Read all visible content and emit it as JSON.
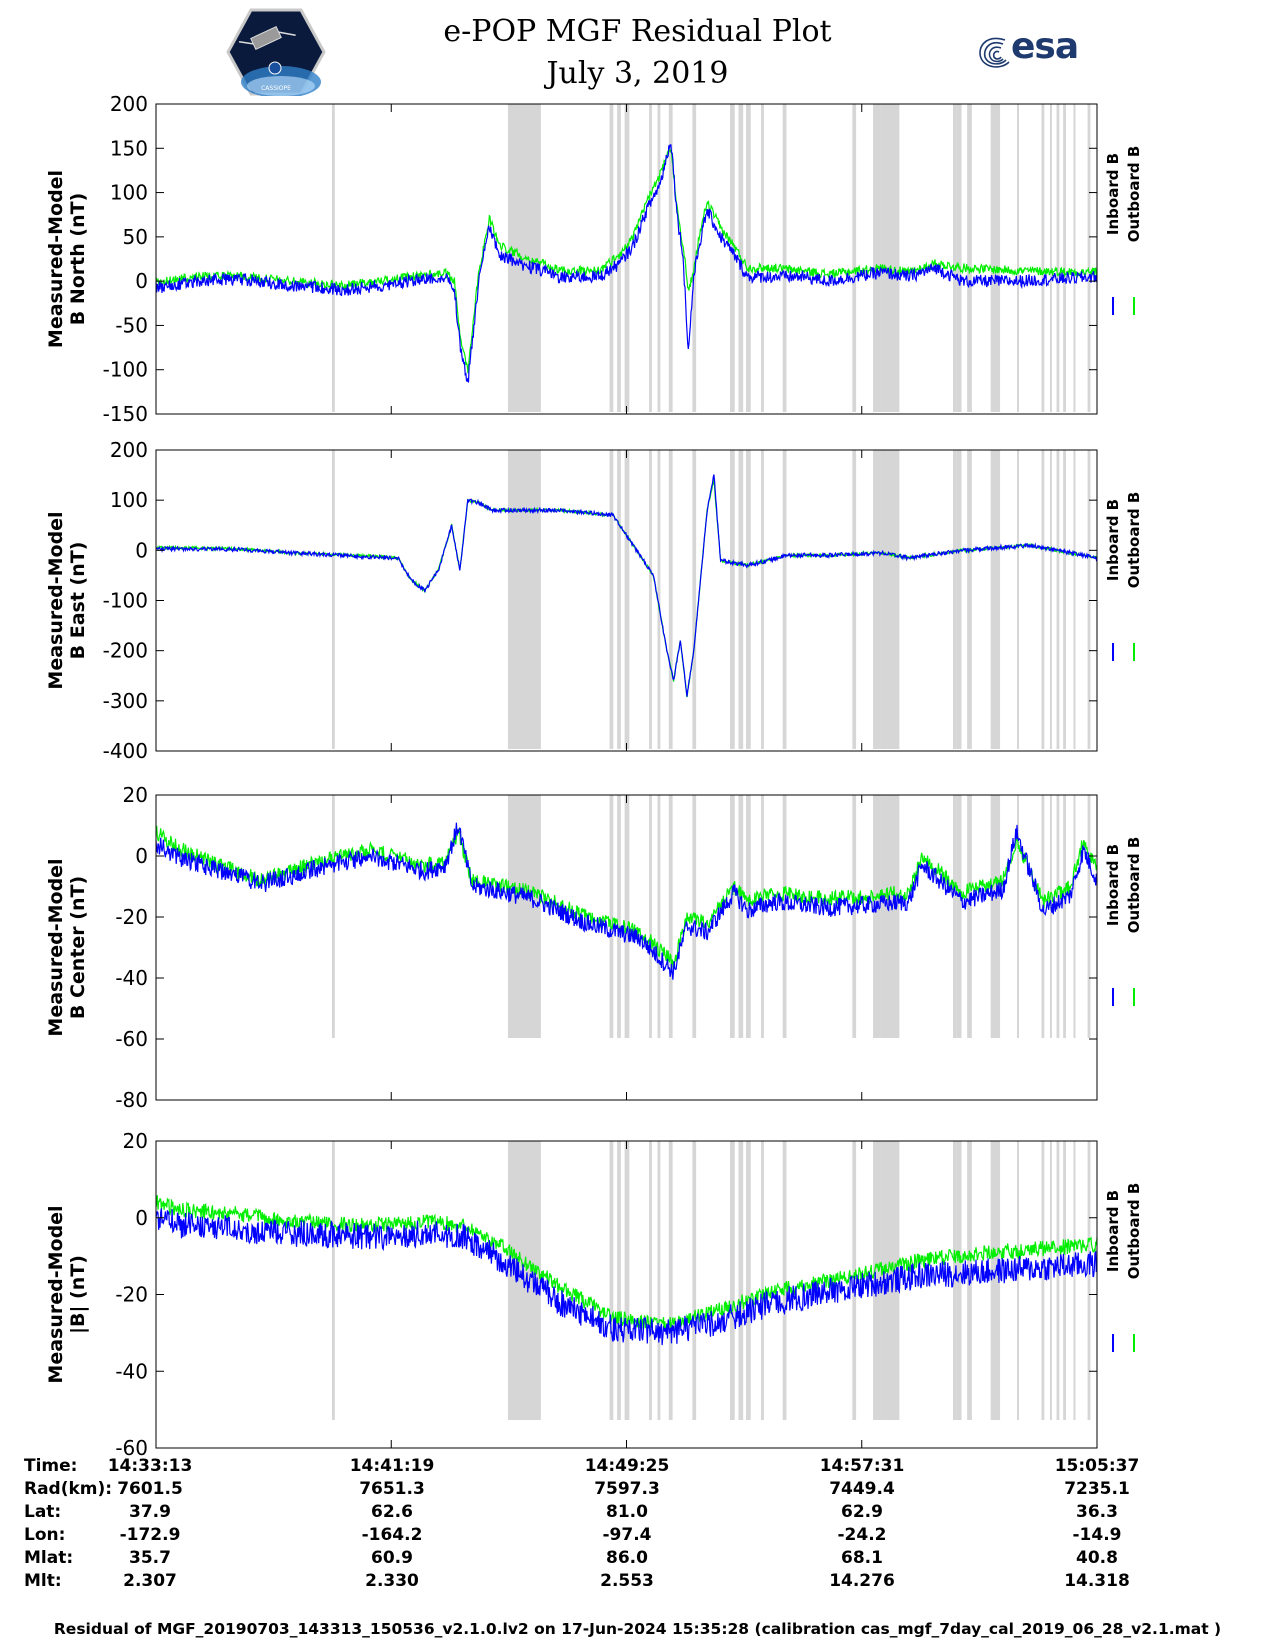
{
  "header": {
    "title_line1": "e-POP MGF Residual Plot",
    "title_line2": "July 3, 2019",
    "logo_left": "cassiope-mission-patch",
    "logo_left_text": "CASSIOPE",
    "logo_right": "esa-logo",
    "logo_right_text": "esa"
  },
  "colors": {
    "inboard": "#0000ff",
    "outboard": "#00ee00",
    "shade": "#d6d6d6",
    "axis": "#000000"
  },
  "chart_data": [
    {
      "type": "line",
      "ylabel_line1": "Measured-Model",
      "ylabel_line2": "B North (nT)",
      "ylim": [
        -150,
        200
      ],
      "yticks": [
        200,
        150,
        100,
        50,
        0,
        -50,
        -100,
        -150
      ],
      "legend": [
        "Inboard B",
        "Outboard B"
      ],
      "legend_position": "right",
      "series": [
        {
          "name": "Outboard B",
          "color": "#00ee00",
          "noise": 5,
          "x": [
            0,
            30,
            60,
            100,
            140,
            175,
            200,
            215,
            222,
            226,
            232,
            240,
            248,
            256,
            270,
            300,
            330,
            345,
            355,
            365,
            375,
            383,
            388,
            392,
            396,
            400,
            404,
            410,
            420,
            430,
            440,
            460,
            480,
            500,
            540,
            560,
            580,
            600,
            640,
            700
          ],
          "y": [
            -2,
            5,
            6,
            0,
            -5,
            2,
            7,
            9,
            0,
            -60,
            -100,
            10,
            70,
            40,
            30,
            12,
            12,
            30,
            50,
            90,
            120,
            150,
            80,
            40,
            -10,
            10,
            50,
            90,
            60,
            40,
            15,
            15,
            12,
            8,
            15,
            10,
            20,
            15,
            12,
            10
          ]
        },
        {
          "name": "Inboard B",
          "color": "#0000ff",
          "noise": 7,
          "x": [
            0,
            30,
            60,
            100,
            140,
            175,
            200,
            215,
            222,
            226,
            232,
            240,
            248,
            256,
            270,
            300,
            330,
            345,
            355,
            365,
            375,
            383,
            388,
            392,
            396,
            400,
            404,
            410,
            420,
            430,
            440,
            460,
            480,
            500,
            540,
            560,
            580,
            600,
            640,
            700
          ],
          "y": [
            -8,
            0,
            3,
            -5,
            -10,
            -3,
            2,
            5,
            -10,
            -70,
            -115,
            0,
            60,
            30,
            20,
            5,
            5,
            20,
            40,
            80,
            110,
            160,
            70,
            30,
            -80,
            5,
            40,
            80,
            50,
            30,
            5,
            5,
            5,
            0,
            10,
            5,
            15,
            0,
            0,
            5
          ]
        }
      ]
    },
    {
      "type": "line",
      "ylabel_line1": "Measured-Model",
      "ylabel_line2": "B East (nT)",
      "ylim": [
        -400,
        200
      ],
      "yticks": [
        200,
        100,
        0,
        -100,
        -200,
        -300,
        -400
      ],
      "legend": [
        "Inboard B",
        "Outboard B"
      ],
      "legend_position": "right",
      "series": [
        {
          "name": "Outboard B",
          "color": "#00ee00",
          "noise": 3,
          "x": [
            0,
            20,
            60,
            100,
            150,
            180,
            190,
            200,
            210,
            220,
            226,
            232,
            240,
            250,
            270,
            300,
            340,
            370,
            380,
            385,
            390,
            395,
            400,
            410,
            415,
            420,
            440,
            470,
            500,
            540,
            560,
            600,
            650,
            700
          ],
          "y": [
            5,
            5,
            3,
            -5,
            -10,
            -15,
            -60,
            -80,
            -40,
            50,
            -40,
            100,
            95,
            80,
            80,
            80,
            70,
            -50,
            -200,
            -260,
            -180,
            -290,
            -200,
            80,
            140,
            -20,
            -30,
            -10,
            -10,
            -5,
            -15,
            0,
            10,
            -15
          ]
        },
        {
          "name": "Inboard B",
          "color": "#0000ff",
          "noise": 4,
          "x": [
            0,
            20,
            60,
            100,
            150,
            180,
            190,
            200,
            210,
            220,
            226,
            232,
            240,
            250,
            270,
            300,
            340,
            370,
            380,
            385,
            390,
            395,
            400,
            410,
            415,
            420,
            440,
            470,
            500,
            540,
            560,
            600,
            650,
            700
          ],
          "y": [
            3,
            3,
            2,
            -5,
            -12,
            -15,
            -60,
            -80,
            -40,
            50,
            -40,
            100,
            95,
            80,
            80,
            80,
            70,
            -50,
            -200,
            -260,
            -180,
            -290,
            -200,
            80,
            150,
            -20,
            -30,
            -10,
            -10,
            -5,
            -15,
            0,
            10,
            -15
          ]
        }
      ]
    },
    {
      "type": "line",
      "ylabel_line1": "Measured-Model",
      "ylabel_line2": "B Center (nT)",
      "ylim": [
        -80,
        20
      ],
      "yticks": [
        20,
        0,
        -20,
        -40,
        -60,
        -80
      ],
      "legend": [
        "Inboard B",
        "Outboard B"
      ],
      "legend_position": "right",
      "series": [
        {
          "name": "Outboard B",
          "color": "#00ee00",
          "noise": 2.5,
          "x": [
            0,
            15,
            40,
            80,
            120,
            160,
            200,
            215,
            225,
            235,
            250,
            280,
            320,
            360,
            385,
            395,
            410,
            430,
            440,
            460,
            500,
            560,
            570,
            600,
            630,
            640,
            660,
            680,
            690,
            700
          ],
          "y": [
            8,
            3,
            -2,
            -8,
            -2,
            2,
            -3,
            -1,
            8,
            -8,
            -9,
            -12,
            -20,
            -25,
            -35,
            -20,
            -22,
            -10,
            -15,
            -12,
            -14,
            -12,
            0,
            -12,
            -8,
            5,
            -15,
            -10,
            5,
            -5
          ]
        },
        {
          "name": "Inboard B",
          "color": "#0000ff",
          "noise": 3,
          "x": [
            0,
            15,
            40,
            80,
            120,
            160,
            200,
            215,
            225,
            235,
            250,
            280,
            320,
            360,
            385,
            395,
            410,
            430,
            440,
            460,
            500,
            560,
            570,
            600,
            630,
            640,
            660,
            680,
            690,
            700
          ],
          "y": [
            4,
            0,
            -4,
            -9,
            -4,
            0,
            -5,
            -3,
            10,
            -10,
            -11,
            -14,
            -22,
            -27,
            -38,
            -23,
            -25,
            -12,
            -18,
            -15,
            -17,
            -15,
            -3,
            -15,
            -11,
            8,
            -18,
            -13,
            2,
            -8
          ]
        }
      ]
    },
    {
      "type": "line",
      "ylabel_line1": "Measured-Model",
      "ylabel_line2": "|B| (nT)",
      "ylim": [
        -60,
        20
      ],
      "yticks": [
        20,
        0,
        -20,
        -40,
        -60
      ],
      "legend": [
        "Inboard B",
        "Outboard B"
      ],
      "legend_position": "right",
      "series": [
        {
          "name": "Outboard B",
          "color": "#00ee00",
          "noise": 2,
          "x": [
            0,
            20,
            60,
            100,
            160,
            200,
            230,
            260,
            300,
            340,
            380,
            420,
            460,
            520,
            570,
            620,
            660,
            700
          ],
          "y": [
            4,
            2,
            1,
            -1,
            -2,
            -1,
            -2,
            -8,
            -18,
            -26,
            -28,
            -24,
            -19,
            -15,
            -11,
            -9,
            -8,
            -7
          ]
        },
        {
          "name": "Inboard B",
          "color": "#0000ff",
          "noise": 3.5,
          "x": [
            0,
            20,
            60,
            100,
            160,
            200,
            230,
            260,
            300,
            340,
            380,
            420,
            460,
            520,
            570,
            620,
            660,
            700
          ],
          "y": [
            0,
            -2,
            -3,
            -4,
            -5,
            -4,
            -5,
            -12,
            -22,
            -29,
            -30,
            -27,
            -22,
            -18,
            -15,
            -14,
            -13,
            -12
          ]
        }
      ]
    }
  ],
  "shaded_intervals_fraction": [
    [
      0.187,
      0.19
    ],
    [
      0.374,
      0.409
    ],
    [
      0.482,
      0.486
    ],
    [
      0.49,
      0.494
    ],
    [
      0.498,
      0.503
    ],
    [
      0.524,
      0.527
    ],
    [
      0.533,
      0.536
    ],
    [
      0.545,
      0.549
    ],
    [
      0.57,
      0.574
    ],
    [
      0.61,
      0.615
    ],
    [
      0.619,
      0.624
    ],
    [
      0.627,
      0.632
    ],
    [
      0.643,
      0.646
    ],
    [
      0.666,
      0.67
    ],
    [
      0.74,
      0.744
    ],
    [
      0.762,
      0.77
    ],
    [
      0.77,
      0.79
    ],
    [
      0.847,
      0.851
    ],
    [
      0.851,
      0.856
    ],
    [
      0.862,
      0.867
    ],
    [
      0.887,
      0.897
    ],
    [
      0.915,
      0.917
    ],
    [
      0.941,
      0.944
    ],
    [
      0.95,
      0.952
    ],
    [
      0.957,
      0.96
    ],
    [
      0.964,
      0.967
    ],
    [
      0.975,
      0.977
    ],
    [
      0.99,
      0.993
    ]
  ],
  "x_ticks_count": 5,
  "table": {
    "row_labels": [
      "Time:",
      "Rad(km):",
      "Lat:",
      "Lon:",
      "Mlat:",
      "Mlt:"
    ],
    "columns": [
      [
        "14:33:13",
        "7601.5",
        "37.9",
        "-172.9",
        "35.7",
        "2.307"
      ],
      [
        "14:41:19",
        "7651.3",
        "62.6",
        "-164.2",
        "60.9",
        "2.330"
      ],
      [
        "14:49:25",
        "7597.3",
        "81.0",
        "-97.4",
        "86.0",
        "2.553"
      ],
      [
        "14:57:31",
        "7449.4",
        "62.9",
        "-24.2",
        "68.1",
        "14.276"
      ],
      [
        "15:05:37",
        "7235.1",
        "36.3",
        "-14.9",
        "40.8",
        "14.318"
      ]
    ]
  },
  "footer": "Residual of MGF_20190703_143313_150536_v2.1.0.lv2 on 17-Jun-2024 15:35:28 (calibration cas_mgf_7day_cal_2019_06_28_v2.1.mat )"
}
